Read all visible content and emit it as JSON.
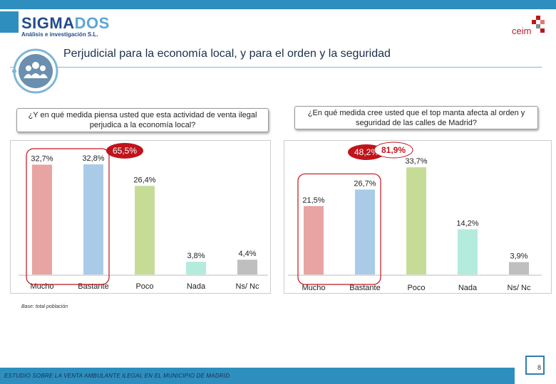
{
  "header": {
    "logo_main": "SIGMA",
    "logo_accent": "DOS",
    "logo_subtitle": "Análisis e investigación S.L.",
    "partner_logo": "ceim"
  },
  "title": "Perjudicial para la economía local, y para el orden y la seguridad",
  "footer": {
    "base_note": "Base: total población",
    "study_title": "ESTUDIO SOBRE LA VENTA AMBULANTE ILEGAL EN EL MUNICIPIO DE MADRID",
    "page_number": "8"
  },
  "colors": {
    "mucho": "#e8a3a3",
    "bastante": "#a9cbe8",
    "poco": "#c6dc96",
    "nada": "#b3ebdd",
    "nsnc": "#bfbfbf",
    "highlight": "#c0141c"
  },
  "chart_data": [
    {
      "type": "bar",
      "title": "¿Y en qué medida piensa usted que esta actividad de venta ilegal perjudica a la economía local?",
      "categories": [
        "Mucho",
        "Bastante",
        "Poco",
        "Nada",
        "Ns/ Nc"
      ],
      "values": [
        32.7,
        32.8,
        26.4,
        3.8,
        4.4
      ],
      "value_labels": [
        "32,7%",
        "32,8%",
        "26,4%",
        "3,8%",
        "4,4%"
      ],
      "group_label": "65,5%",
      "group_categories": [
        "Mucho",
        "Bastante"
      ],
      "ylim": [
        0,
        36
      ]
    },
    {
      "type": "bar",
      "title": "¿En qué medida cree usted que el top manta afecta al orden y seguridad de las calles de Madrid?",
      "categories": [
        "Mucho",
        "Bastante",
        "Poco",
        "Nada",
        "Ns/ Nc"
      ],
      "values": [
        21.5,
        26.7,
        33.7,
        14.2,
        3.9
      ],
      "value_labels": [
        "21,5%",
        "26,7%",
        "33,7%",
        "14,2%",
        "3,9%"
      ],
      "group_label": "48,2%",
      "group_categories": [
        "Mucho",
        "Bastante"
      ],
      "secondary_group_label": "81,9%",
      "ylim": [
        0,
        38
      ]
    }
  ]
}
